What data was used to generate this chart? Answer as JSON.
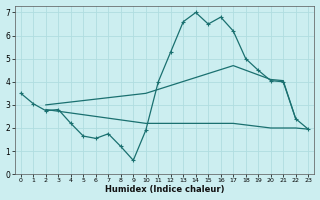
{
  "xlabel": "Humidex (Indice chaleur)",
  "bg_color": "#cceef0",
  "line_color": "#1a7070",
  "grid_color": "#b0dde0",
  "xlim": [
    -0.5,
    23.5
  ],
  "ylim": [
    0,
    7.3
  ],
  "xticks": [
    0,
    1,
    2,
    3,
    4,
    5,
    6,
    7,
    8,
    9,
    10,
    11,
    12,
    13,
    14,
    15,
    16,
    17,
    18,
    19,
    20,
    21,
    22,
    23
  ],
  "yticks": [
    0,
    1,
    2,
    3,
    4,
    5,
    6,
    7
  ],
  "zigzag_x": [
    0,
    1,
    2,
    3,
    4,
    5,
    6,
    7,
    8,
    9,
    10,
    11,
    12,
    13,
    14,
    15,
    16,
    17,
    18,
    19,
    20,
    21,
    22,
    23
  ],
  "zigzag_y": [
    3.5,
    3.05,
    2.75,
    2.8,
    2.2,
    1.65,
    1.55,
    1.75,
    1.2,
    0.6,
    1.9,
    4.0,
    5.3,
    6.6,
    7.0,
    6.5,
    6.8,
    6.2,
    5.0,
    4.5,
    4.05,
    4.0,
    2.4,
    1.95
  ],
  "upper_x": [
    2,
    10,
    17,
    20,
    21,
    22
  ],
  "upper_y": [
    3.0,
    3.5,
    4.7,
    4.1,
    4.05,
    2.4
  ],
  "lower_x": [
    2,
    10,
    17,
    20,
    22,
    23
  ],
  "lower_y": [
    2.8,
    2.2,
    2.2,
    2.0,
    2.0,
    1.95
  ],
  "figsize": [
    3.2,
    2.0
  ],
  "dpi": 100
}
